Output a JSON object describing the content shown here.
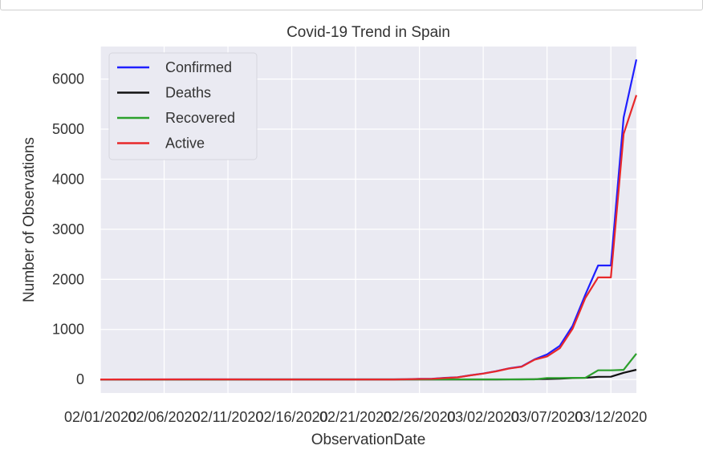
{
  "chart_data": {
    "type": "line",
    "title": "Covid-19 Trend in Spain",
    "xlabel": "ObservationDate",
    "ylabel": "Number of Observations",
    "ylim": [
      -270,
      6650
    ],
    "yticks": [
      0,
      1000,
      2000,
      3000,
      4000,
      5000,
      6000
    ],
    "x_start": "02/01/2020",
    "x_end": "03/14/2020",
    "xticks": [
      "02/01/2020",
      "02/06/2020",
      "02/11/2020",
      "02/16/2020",
      "02/21/2020",
      "02/26/2020",
      "03/02/2020",
      "03/07/2020",
      "03/12/2020"
    ],
    "grid": true,
    "legend_position": "top-left",
    "series": [
      {
        "name": "Confirmed",
        "color": "#1f1fff",
        "points": [
          [
            "02/01/2020",
            1
          ],
          [
            "02/09/2020",
            2
          ],
          [
            "02/15/2020",
            2
          ],
          [
            "02/24/2020",
            2
          ],
          [
            "02/25/2020",
            6
          ],
          [
            "02/26/2020",
            13
          ],
          [
            "02/27/2020",
            15
          ],
          [
            "02/28/2020",
            32
          ],
          [
            "02/29/2020",
            45
          ],
          [
            "03/01/2020",
            84
          ],
          [
            "03/02/2020",
            120
          ],
          [
            "03/03/2020",
            165
          ],
          [
            "03/04/2020",
            222
          ],
          [
            "03/05/2020",
            259
          ],
          [
            "03/06/2020",
            400
          ],
          [
            "03/07/2020",
            500
          ],
          [
            "03/08/2020",
            673
          ],
          [
            "03/09/2020",
            1073
          ],
          [
            "03/10/2020",
            1695
          ],
          [
            "03/11/2020",
            2277
          ],
          [
            "03/12/2020",
            2277
          ],
          [
            "03/13/2020",
            5232
          ],
          [
            "03/14/2020",
            6391
          ]
        ]
      },
      {
        "name": "Deaths",
        "color": "#111111",
        "points": [
          [
            "02/01/2020",
            0
          ],
          [
            "03/02/2020",
            0
          ],
          [
            "03/03/2020",
            1
          ],
          [
            "03/05/2020",
            3
          ],
          [
            "03/06/2020",
            5
          ],
          [
            "03/07/2020",
            10
          ],
          [
            "03/08/2020",
            17
          ],
          [
            "03/09/2020",
            28
          ],
          [
            "03/10/2020",
            35
          ],
          [
            "03/11/2020",
            54
          ],
          [
            "03/12/2020",
            55
          ],
          [
            "03/13/2020",
            133
          ],
          [
            "03/14/2020",
            195
          ]
        ]
      },
      {
        "name": "Recovered",
        "color": "#2ca02c",
        "points": [
          [
            "02/01/2020",
            0
          ],
          [
            "02/09/2020",
            0
          ],
          [
            "02/15/2020",
            2
          ],
          [
            "03/01/2020",
            2
          ],
          [
            "03/05/2020",
            2
          ],
          [
            "03/06/2020",
            2
          ],
          [
            "03/07/2020",
            30
          ],
          [
            "03/08/2020",
            30
          ],
          [
            "03/09/2020",
            32
          ],
          [
            "03/10/2020",
            32
          ],
          [
            "03/11/2020",
            183
          ],
          [
            "03/12/2020",
            183
          ],
          [
            "03/13/2020",
            193
          ],
          [
            "03/14/2020",
            517
          ]
        ]
      },
      {
        "name": "Active",
        "color": "#e8282a",
        "points": [
          [
            "02/01/2020",
            1
          ],
          [
            "02/09/2020",
            2
          ],
          [
            "02/15/2020",
            0
          ],
          [
            "02/24/2020",
            0
          ],
          [
            "02/25/2020",
            4
          ],
          [
            "02/26/2020",
            11
          ],
          [
            "02/27/2020",
            13
          ],
          [
            "02/28/2020",
            30
          ],
          [
            "02/29/2020",
            43
          ],
          [
            "03/01/2020",
            82
          ],
          [
            "03/02/2020",
            118
          ],
          [
            "03/03/2020",
            162
          ],
          [
            "03/04/2020",
            218
          ],
          [
            "03/05/2020",
            254
          ],
          [
            "03/06/2020",
            393
          ],
          [
            "03/07/2020",
            460
          ],
          [
            "03/08/2020",
            626
          ],
          [
            "03/09/2020",
            1013
          ],
          [
            "03/10/2020",
            1628
          ],
          [
            "03/11/2020",
            2040
          ],
          [
            "03/12/2020",
            2039
          ],
          [
            "03/13/2020",
            4906
          ],
          [
            "03/14/2020",
            5679
          ]
        ]
      }
    ]
  }
}
